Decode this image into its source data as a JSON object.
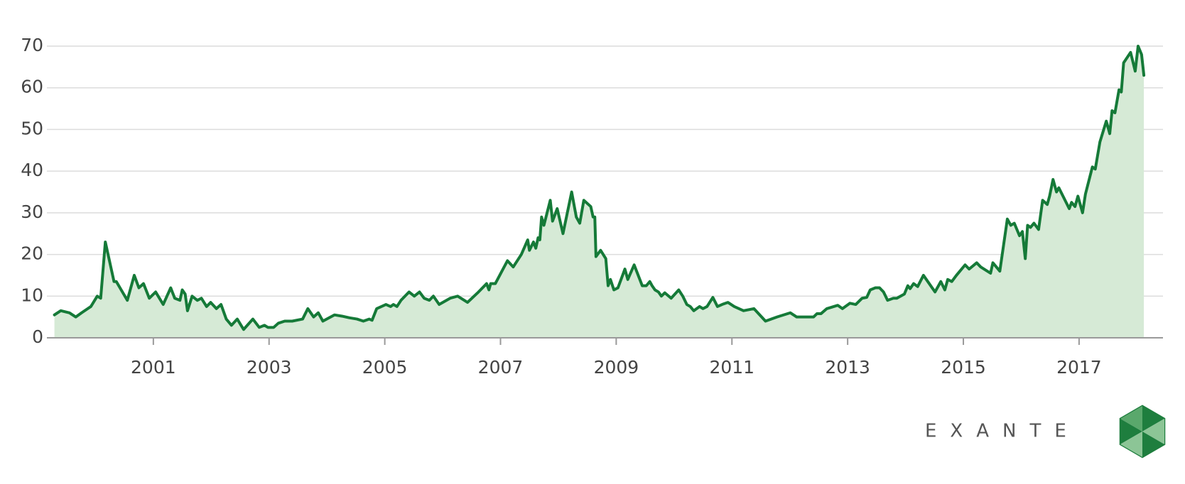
{
  "chart_data": {
    "type": "area",
    "x": [
      1999.29,
      1999.4,
      1999.55,
      1999.66,
      1999.76,
      1999.92,
      2000.03,
      2000.09,
      2000.17,
      2000.32,
      2000.36,
      2000.55,
      2000.67,
      2000.75,
      2000.83,
      2000.93,
      2001.04,
      2001.17,
      2001.3,
      2001.37,
      2001.46,
      2001.5,
      2001.55,
      2001.59,
      2001.67,
      2001.76,
      2001.83,
      2001.92,
      2001.99,
      2002.09,
      2002.17,
      2002.26,
      2002.35,
      2002.45,
      2002.56,
      2002.72,
      2002.83,
      2002.92,
      2002.98,
      2003.08,
      2003.16,
      2003.27,
      2003.4,
      2003.58,
      2003.67,
      2003.77,
      2003.85,
      2003.93,
      2004.13,
      2004.26,
      2004.39,
      2004.52,
      2004.63,
      2004.73,
      2004.78,
      2004.86,
      2005.02,
      2005.1,
      2005.15,
      2005.21,
      2005.28,
      2005.42,
      2005.51,
      2005.6,
      2005.68,
      2005.77,
      2005.84,
      2005.94,
      2006.13,
      2006.26,
      2006.43,
      2006.62,
      2006.76,
      2006.8,
      2006.83,
      2006.91,
      2007.12,
      2007.22,
      2007.36,
      2007.47,
      2007.5,
      2007.57,
      2007.61,
      2007.65,
      2007.68,
      2007.71,
      2007.75,
      2007.86,
      2007.9,
      2007.98,
      2008.08,
      2008.23,
      2008.31,
      2008.37,
      2008.44,
      2008.56,
      2008.6,
      2008.63,
      2008.65,
      2008.73,
      2008.82,
      2008.86,
      2008.9,
      2008.96,
      2009.03,
      2009.15,
      2009.2,
      2009.31,
      2009.45,
      2009.52,
      2009.58,
      2009.62,
      2009.67,
      2009.73,
      2009.78,
      2009.84,
      2009.95,
      2010.08,
      2010.15,
      2010.22,
      2010.28,
      2010.34,
      2010.44,
      2010.5,
      2010.57,
      2010.67,
      2010.75,
      2010.83,
      2010.93,
      2011.04,
      2011.2,
      2011.38,
      2011.58,
      2011.78,
      2012.01,
      2012.12,
      2012.28,
      2012.41,
      2012.47,
      2012.54,
      2012.64,
      2012.83,
      2012.91,
      2013.04,
      2013.14,
      2013.25,
      2013.33,
      2013.39,
      2013.48,
      2013.55,
      2013.62,
      2013.69,
      2013.79,
      2013.85,
      2013.98,
      2014.04,
      2014.08,
      2014.14,
      2014.21,
      2014.31,
      2014.51,
      2014.61,
      2014.68,
      2014.73,
      2014.8,
      2014.88,
      2015.03,
      2015.1,
      2015.23,
      2015.3,
      2015.47,
      2015.51,
      2015.63,
      2015.76,
      2015.82,
      2015.88,
      2015.97,
      2016.02,
      2016.07,
      2016.11,
      2016.16,
      2016.22,
      2016.3,
      2016.37,
      2016.45,
      2016.49,
      2016.55,
      2016.61,
      2016.65,
      2016.83,
      2016.87,
      2016.93,
      2016.98,
      2017.06,
      2017.11,
      2017.23,
      2017.28,
      2017.36,
      2017.47,
      2017.53,
      2017.57,
      2017.62,
      2017.69,
      2017.73,
      2017.77,
      2017.89,
      2017.97,
      2018.02,
      2018.08,
      2018.12
    ],
    "values": [
      5.5,
      6.5,
      6,
      5,
      6,
      7.5,
      10,
      9.5,
      23,
      13.5,
      13.5,
      9,
      15,
      12,
      13,
      9.5,
      11,
      8,
      12,
      9.5,
      9,
      11.5,
      10.5,
      6.5,
      10,
      9,
      9.5,
      7.5,
      8.5,
      7,
      8,
      4.5,
      3,
      4.5,
      2,
      4.5,
      2.5,
      3,
      2.5,
      2.5,
      3.5,
      4,
      4,
      4.5,
      7,
      5,
      6,
      4,
      5.5,
      5.2,
      4.8,
      4.5,
      4,
      4.5,
      4.2,
      7,
      8,
      7.5,
      8,
      7.5,
      9,
      11,
      10,
      11,
      9.5,
      9,
      10,
      8,
      9.5,
      10,
      8.5,
      11,
      13,
      11.5,
      13,
      13,
      18.5,
      17,
      20,
      23.5,
      21,
      23,
      21.5,
      24,
      23.5,
      29,
      27,
      33,
      28,
      31,
      25,
      35,
      29,
      27.5,
      33,
      31.5,
      29,
      29,
      19.5,
      21,
      19,
      12.5,
      14,
      11.5,
      12,
      16.5,
      14,
      17.5,
      12.5,
      12.5,
      13.5,
      12.5,
      11.5,
      11,
      10,
      10.8,
      9.5,
      11.5,
      10,
      8,
      7.5,
      6.5,
      7.5,
      7,
      7.5,
      9.7,
      7.5,
      8,
      8.5,
      7.5,
      6.5,
      7,
      4,
      5,
      6,
      5,
      5,
      5,
      5.8,
      5.8,
      7,
      7.8,
      7,
      8.3,
      8,
      9.5,
      9.7,
      11.5,
      12,
      12,
      11,
      9,
      9.5,
      9.5,
      10.5,
      12.5,
      11.8,
      13,
      12.3,
      15,
      11,
      13.5,
      11.5,
      14,
      13.5,
      15,
      17.5,
      16.5,
      18,
      17,
      15.5,
      18,
      16,
      28.5,
      27,
      27.5,
      24.5,
      25.5,
      19,
      27,
      26.5,
      27.5,
      26,
      33,
      32,
      34,
      38,
      35,
      36,
      31,
      32.5,
      31.5,
      34,
      30,
      34.5,
      41,
      40.5,
      47,
      52,
      49,
      54.5,
      54,
      59.5,
      59,
      66,
      68.5,
      64,
      70,
      68,
      63
    ],
    "line_color": "#157a38",
    "fill_color": "#d6ead6",
    "xlim": [
      1999.16,
      2018.45
    ],
    "xticks": [
      2001,
      2003,
      2005,
      2007,
      2009,
      2011,
      2013,
      2015,
      2017
    ],
    "ylim": [
      0,
      70
    ],
    "yticks": [
      0,
      10,
      20,
      30,
      40,
      50,
      60,
      70
    ],
    "grid": true
  },
  "brand": "EXANTE"
}
